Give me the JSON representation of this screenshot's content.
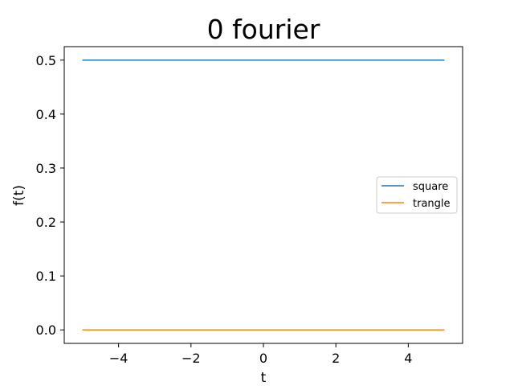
{
  "chart_data": {
    "type": "line",
    "title": "0 fourier",
    "xlabel": "t",
    "ylabel": "f(t)",
    "xlim": [
      -5.5,
      5.5
    ],
    "ylim": [
      -0.025,
      0.525
    ],
    "xticks": [
      -4,
      -2,
      0,
      2,
      4
    ],
    "xtick_labels": [
      "−4",
      "−2",
      "0",
      "2",
      "4"
    ],
    "yticks": [
      0.0,
      0.1,
      0.2,
      0.3,
      0.4,
      0.5
    ],
    "ytick_labels": [
      "0.0",
      "0.1",
      "0.2",
      "0.3",
      "0.4",
      "0.5"
    ],
    "grid": false,
    "legend_position": "center-right",
    "series": [
      {
        "name": "square",
        "color": "#1f77b4",
        "x": [
          -5,
          5
        ],
        "y": [
          0.5,
          0.5
        ]
      },
      {
        "name": "trangle",
        "color": "#ff7f0e",
        "x": [
          -5,
          5
        ],
        "y": [
          0.0,
          0.0
        ]
      }
    ]
  }
}
